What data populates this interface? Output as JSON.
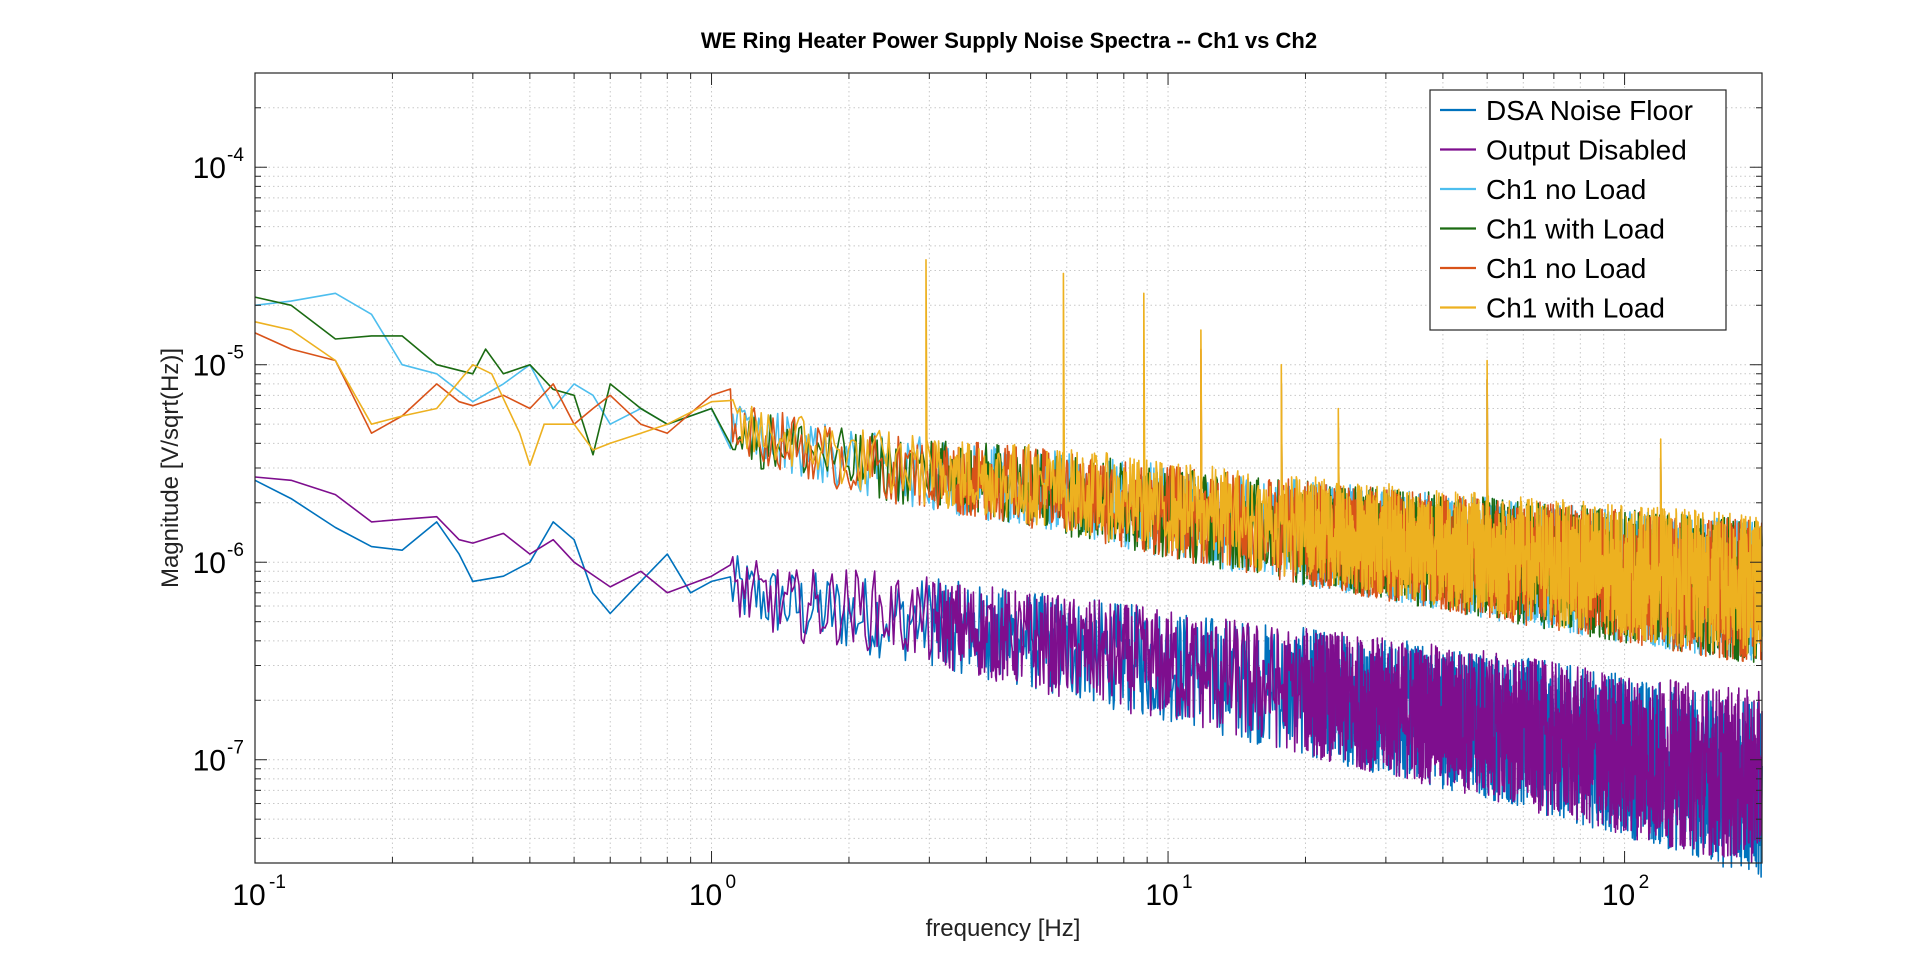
{
  "chart_data": {
    "type": "line",
    "title": "WE Ring Heater Power Supply Noise Spectra -- Ch1 vs Ch2",
    "xlabel": "frequency [Hz]",
    "ylabel": "Magnitude [V/sqrt(Hz)]",
    "x_scale": "log",
    "y_scale": "log",
    "xlim": [
      0.1,
      200
    ],
    "ylim": [
      3e-08,
      0.0003
    ],
    "grid": true,
    "legend_position": "top-right",
    "x_ticks": [
      {
        "base": "10",
        "exp": "-1",
        "value": 0.1
      },
      {
        "base": "10",
        "exp": "0",
        "value": 1
      },
      {
        "base": "10",
        "exp": "1",
        "value": 10
      },
      {
        "base": "10",
        "exp": "2",
        "value": 100
      }
    ],
    "y_ticks": [
      {
        "base": "10",
        "exp": "-4",
        "value": 0.0001
      },
      {
        "base": "10",
        "exp": "-5",
        "value": 1e-05
      },
      {
        "base": "10",
        "exp": "-6",
        "value": 1e-06
      },
      {
        "base": "10",
        "exp": "-7",
        "value": 1e-07
      }
    ],
    "series": [
      {
        "name": "DSA Noise Floor",
        "color": "#0072BD",
        "points": [
          [
            0.1,
            2.6e-06
          ],
          [
            0.12,
            2.1e-06
          ],
          [
            0.15,
            1.5e-06
          ],
          [
            0.18,
            1.2e-06
          ],
          [
            0.21,
            1.15e-06
          ],
          [
            0.25,
            1.6e-06
          ],
          [
            0.28,
            1.1e-06
          ],
          [
            0.3,
            8e-07
          ],
          [
            0.35,
            8.5e-07
          ],
          [
            0.4,
            1e-06
          ],
          [
            0.45,
            1.6e-06
          ],
          [
            0.5,
            1.3e-06
          ],
          [
            0.55,
            7e-07
          ],
          [
            0.6,
            5.5e-07
          ],
          [
            0.7,
            8e-07
          ],
          [
            0.8,
            1.1e-06
          ],
          [
            0.9,
            7e-07
          ],
          [
            1,
            8e-07
          ],
          [
            1.2,
            7e-07
          ],
          [
            1.5,
            6e-07
          ],
          [
            2,
            5.5e-07
          ],
          [
            3,
            5e-07
          ],
          [
            5,
            4e-07
          ],
          [
            10,
            3e-07
          ],
          [
            20,
            2.2e-07
          ],
          [
            50,
            1.5e-07
          ],
          [
            100,
            1.05e-07
          ],
          [
            200,
            7e-08
          ]
        ]
      },
      {
        "name": "Output Disabled",
        "color": "#7E0E8E",
        "points": [
          [
            0.1,
            2.7e-06
          ],
          [
            0.12,
            2.6e-06
          ],
          [
            0.15,
            2.2e-06
          ],
          [
            0.18,
            1.6e-06
          ],
          [
            0.21,
            1.65e-06
          ],
          [
            0.25,
            1.7e-06
          ],
          [
            0.28,
            1.3e-06
          ],
          [
            0.3,
            1.25e-06
          ],
          [
            0.35,
            1.4e-06
          ],
          [
            0.4,
            1.1e-06
          ],
          [
            0.45,
            1.3e-06
          ],
          [
            0.5,
            1e-06
          ],
          [
            0.6,
            7.5e-07
          ],
          [
            0.7,
            9e-07
          ],
          [
            0.8,
            7e-07
          ],
          [
            1,
            8.5e-07
          ],
          [
            1.2,
            7e-07
          ],
          [
            1.5,
            6e-07
          ],
          [
            2,
            6e-07
          ],
          [
            3,
            5e-07
          ],
          [
            5,
            4e-07
          ],
          [
            10,
            3e-07
          ],
          [
            20,
            2.2e-07
          ],
          [
            50,
            1.5e-07
          ],
          [
            100,
            1.05e-07
          ],
          [
            200,
            8e-08
          ]
        ]
      },
      {
        "name": "Ch1 no Load",
        "color": "#4DBEEE",
        "points": [
          [
            0.1,
            2e-05
          ],
          [
            0.12,
            2.1e-05
          ],
          [
            0.15,
            2.3e-05
          ],
          [
            0.18,
            1.8e-05
          ],
          [
            0.21,
            1e-05
          ],
          [
            0.25,
            9e-06
          ],
          [
            0.3,
            6.5e-06
          ],
          [
            0.35,
            8e-06
          ],
          [
            0.4,
            1e-05
          ],
          [
            0.45,
            6e-06
          ],
          [
            0.5,
            8e-06
          ],
          [
            0.55,
            7e-06
          ],
          [
            0.6,
            5e-06
          ],
          [
            0.7,
            6e-06
          ],
          [
            0.8,
            5e-06
          ],
          [
            1,
            6e-06
          ],
          [
            1.2,
            4.5e-06
          ],
          [
            1.5,
            4e-06
          ],
          [
            2,
            3.2e-06
          ],
          [
            3,
            2.8e-06
          ],
          [
            5,
            2.4e-06
          ],
          [
            10,
            1.8e-06
          ],
          [
            20,
            1.4e-06
          ],
          [
            50,
            1.05e-06
          ],
          [
            100,
            8.5e-07
          ],
          [
            200,
            7e-07
          ]
        ]
      },
      {
        "name": "Ch1 with Load",
        "color": "#1B6B12",
        "points": [
          [
            0.1,
            2.2e-05
          ],
          [
            0.12,
            2e-05
          ],
          [
            0.15,
            1.35e-05
          ],
          [
            0.18,
            1.4e-05
          ],
          [
            0.21,
            1.4e-05
          ],
          [
            0.25,
            1e-05
          ],
          [
            0.3,
            9e-06
          ],
          [
            0.32,
            1.2e-05
          ],
          [
            0.35,
            9e-06
          ],
          [
            0.4,
            1e-05
          ],
          [
            0.45,
            7.5e-06
          ],
          [
            0.5,
            7e-06
          ],
          [
            0.55,
            3.5e-06
          ],
          [
            0.6,
            8e-06
          ],
          [
            0.7,
            6e-06
          ],
          [
            0.8,
            5e-06
          ],
          [
            1,
            6e-06
          ],
          [
            1.2,
            4.2e-06
          ],
          [
            1.5,
            4e-06
          ],
          [
            2,
            3.2e-06
          ],
          [
            3,
            2.8e-06
          ],
          [
            5,
            2.4e-06
          ],
          [
            10,
            1.8e-06
          ],
          [
            20,
            1.4e-06
          ],
          [
            50,
            1.05e-06
          ],
          [
            100,
            8.5e-07
          ],
          [
            200,
            7e-07
          ]
        ]
      },
      {
        "name": "Ch1 no Load",
        "color": "#D95319",
        "points": [
          [
            0.1,
            1.45e-05
          ],
          [
            0.12,
            1.2e-05
          ],
          [
            0.15,
            1.05e-05
          ],
          [
            0.18,
            4.5e-06
          ],
          [
            0.21,
            5.5e-06
          ],
          [
            0.25,
            8e-06
          ],
          [
            0.28,
            6.5e-06
          ],
          [
            0.3,
            6.2e-06
          ],
          [
            0.35,
            7e-06
          ],
          [
            0.4,
            6e-06
          ],
          [
            0.45,
            8e-06
          ],
          [
            0.5,
            5e-06
          ],
          [
            0.55,
            6e-06
          ],
          [
            0.6,
            7e-06
          ],
          [
            0.7,
            5e-06
          ],
          [
            0.8,
            4.5e-06
          ],
          [
            1,
            7e-06
          ],
          [
            1.2,
            4.5e-06
          ],
          [
            1.5,
            4e-06
          ],
          [
            2,
            3.2e-06
          ],
          [
            3,
            2.8e-06
          ],
          [
            5,
            2.4e-06
          ],
          [
            10,
            1.8e-06
          ],
          [
            20,
            1.4e-06
          ],
          [
            50,
            1.05e-06
          ],
          [
            100,
            8.5e-07
          ],
          [
            200,
            7e-07
          ]
        ]
      },
      {
        "name": "Ch1 with Load",
        "color": "#EDB120",
        "points": [
          [
            0.1,
            1.65e-05
          ],
          [
            0.12,
            1.5e-05
          ],
          [
            0.15,
            1.05e-05
          ],
          [
            0.18,
            5e-06
          ],
          [
            0.21,
            5.5e-06
          ],
          [
            0.25,
            6e-06
          ],
          [
            0.3,
            1e-05
          ],
          [
            0.33,
            9e-06
          ],
          [
            0.38,
            4.5e-06
          ],
          [
            0.4,
            3.1e-06
          ],
          [
            0.43,
            5e-06
          ],
          [
            0.5,
            5e-06
          ],
          [
            0.55,
            3.7e-06
          ],
          [
            0.6,
            4e-06
          ],
          [
            0.7,
            4.5e-06
          ],
          [
            0.8,
            5e-06
          ],
          [
            1,
            6.5e-06
          ],
          [
            1.2,
            4.5e-06
          ],
          [
            1.5,
            4.2e-06
          ],
          [
            2,
            3.4e-06
          ],
          [
            3,
            2.9e-06
          ],
          [
            5,
            2.5e-06
          ],
          [
            10,
            1.9e-06
          ],
          [
            20,
            1.5e-06
          ],
          [
            50,
            1.1e-06
          ],
          [
            100,
            9e-07
          ],
          [
            200,
            7.5e-07
          ]
        ]
      }
    ],
    "peaks": [
      {
        "x": 2.95,
        "y": 3.4e-05
      },
      {
        "x": 5.9,
        "y": 2.9e-05
      },
      {
        "x": 8.85,
        "y": 2.3e-05
      },
      {
        "x": 11.8,
        "y": 1.5e-05
      },
      {
        "x": 17.7,
        "y": 1e-05
      },
      {
        "x": 23.6,
        "y": 6e-06
      },
      {
        "x": 50,
        "y": 1.05e-05
      },
      {
        "x": 120,
        "y": 4.2e-06
      }
    ]
  }
}
